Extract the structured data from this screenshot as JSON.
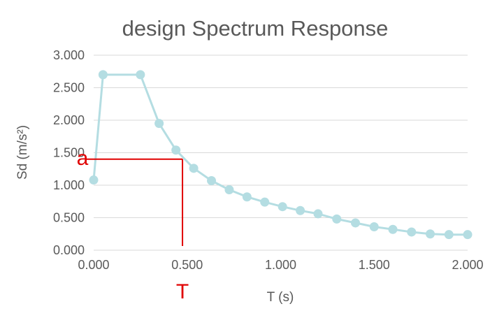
{
  "chart_data": {
    "type": "line",
    "title": "design Spectrum Response",
    "xlabel": "T (s)",
    "ylabel": "Sd (m/s²)",
    "xlim": [
      0,
      2.0
    ],
    "ylim": [
      0,
      3.0
    ],
    "xticks": [
      0,
      0.5,
      1.0,
      1.5,
      2.0
    ],
    "xtick_labels": [
      "0.000",
      "0.500",
      "1.000",
      "1.500",
      "2.000"
    ],
    "yticks": [
      0,
      0.5,
      1.0,
      1.5,
      2.0,
      2.5,
      3.0
    ],
    "ytick_labels": [
      "0.000",
      "0.500",
      "1.000",
      "1.500",
      "2.000",
      "2.500",
      "3.000"
    ],
    "grid": true,
    "legend": "none",
    "series_color": "#b4dde2",
    "x": [
      0.0,
      0.05,
      0.25,
      0.35,
      0.44,
      0.535,
      0.63,
      0.725,
      0.82,
      0.915,
      1.01,
      1.105,
      1.2,
      1.3,
      1.4,
      1.5,
      1.6,
      1.7,
      1.8,
      1.9,
      2.0
    ],
    "values": [
      1.08,
      2.7,
      2.7,
      1.95,
      1.54,
      1.26,
      1.07,
      0.93,
      0.82,
      0.74,
      0.67,
      0.61,
      0.56,
      0.48,
      0.42,
      0.36,
      0.32,
      0.28,
      0.25,
      0.24,
      0.24
    ],
    "annotations": {
      "color": "#e00000",
      "a_label": "a",
      "t_label": "T",
      "t_value": 0.475,
      "a_value": 1.4
    }
  }
}
